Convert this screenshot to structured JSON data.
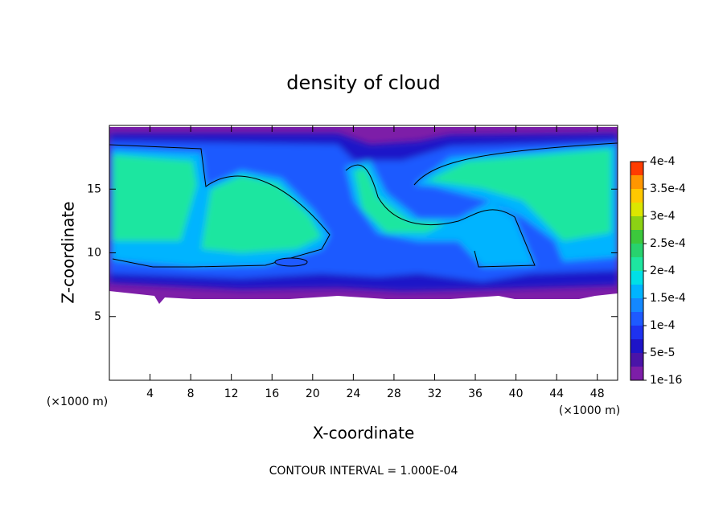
{
  "chart_data": {
    "type": "contour",
    "title": "density of cloud",
    "x_label": "X-coordinate",
    "y_label": "Z-coordinate",
    "x_unit": "(×1000 m)",
    "y_unit": "(×1000 m)",
    "footer": "CONTOUR INTERVAL = 1.000E-04",
    "xlim": [
      0,
      50
    ],
    "xticks": [
      4,
      8,
      12,
      16,
      20,
      24,
      28,
      32,
      36,
      40,
      44,
      48
    ],
    "ylim": [
      0,
      20
    ],
    "yticks": [
      5,
      10,
      15
    ],
    "colorbar": {
      "ticks": [
        {
          "value": 1e-16,
          "label": "1e-16"
        },
        {
          "value": 5e-05,
          "label": "5e-5"
        },
        {
          "value": 0.0001,
          "label": "1e-4"
        },
        {
          "value": 0.00015,
          "label": "1.5e-4"
        },
        {
          "value": 0.0002,
          "label": "2e-4"
        },
        {
          "value": 0.00025,
          "label": "2.5e-4"
        },
        {
          "value": 0.0003,
          "label": "3e-4"
        },
        {
          "value": 0.00035,
          "label": "3.5e-4"
        },
        {
          "value": 0.0004,
          "label": "4e-4"
        }
      ],
      "colors": [
        "#7d1ea8",
        "#4a14a8",
        "#1e14c8",
        "#1e32f0",
        "#1e5aff",
        "#1488ff",
        "#00b4ff",
        "#00e0e6",
        "#1ee6a0",
        "#28d26e",
        "#3cc83c",
        "#8cd214",
        "#dce600",
        "#ffc800",
        "#ff9600",
        "#ff3c00"
      ]
    }
  }
}
